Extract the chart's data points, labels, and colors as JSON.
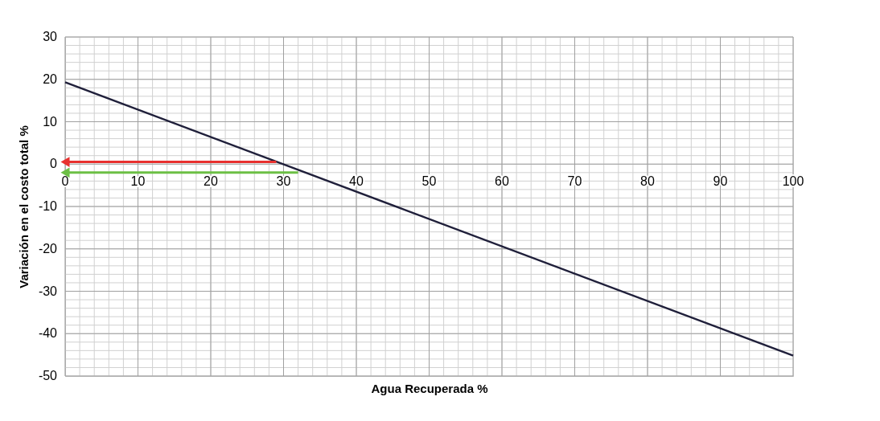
{
  "chart_data": {
    "type": "line",
    "xlabel": "Agua Recuperada %",
    "ylabel": "Variación en el costo total %",
    "xlim": [
      0,
      100
    ],
    "xticks": [
      0,
      10,
      20,
      30,
      40,
      50,
      60,
      70,
      80,
      90,
      100
    ],
    "ylim": [
      -50,
      30
    ],
    "yticks": [
      -50,
      -40,
      -30,
      -20,
      -10,
      0,
      10,
      20,
      30
    ],
    "grid": true,
    "series": [
      {
        "x": [
          0,
          100
        ],
        "values": [
          19.3,
          -45.2
        ],
        "color": "#1f1f3a"
      },
      {
        "x": [
          29,
          0
        ],
        "values": [
          0.5,
          0.5
        ],
        "color": "#e8312f",
        "marker": "triangle"
      },
      {
        "x": [
          32,
          0
        ],
        "values": [
          -2,
          -2
        ],
        "color": "#6cbf45",
        "marker": "triangle"
      }
    ]
  }
}
